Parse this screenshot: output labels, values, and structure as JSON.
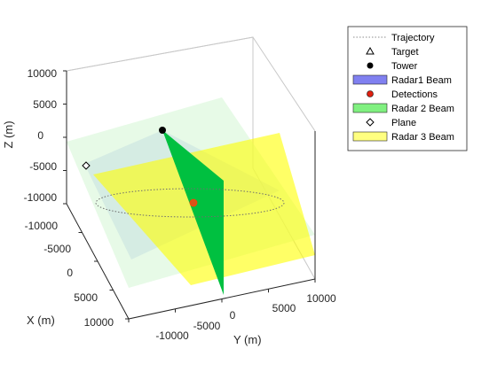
{
  "chart_data": {
    "type": "scatter",
    "projection": "3d",
    "title": "",
    "xlabel": "X (m)",
    "ylabel": "Y (m)",
    "zlabel": "Z (m)",
    "xticks": [
      "-10000",
      "-5000",
      "0",
      "5000",
      "10000"
    ],
    "yticks": [
      "-10000",
      "-5000",
      "0",
      "5000",
      "10000"
    ],
    "zticks": [
      "10000",
      "5000",
      "0",
      "-5000",
      "-10000"
    ],
    "xlim": [
      -10000,
      10000
    ],
    "ylim": [
      -10000,
      10000
    ],
    "zlim": [
      -10000,
      10000
    ],
    "grid": false,
    "legend_position": "outside-top-right",
    "legend": [
      {
        "label": "Trajectory",
        "key": "trajectory"
      },
      {
        "label": "Target",
        "key": "target"
      },
      {
        "label": "Tower",
        "key": "tower"
      },
      {
        "label": "Radar1 Beam",
        "key": "radar1"
      },
      {
        "label": "Detections",
        "key": "detections"
      },
      {
        "label": "Radar 2 Beam",
        "key": "radar2"
      },
      {
        "label": "Plane",
        "key": "plane"
      },
      {
        "label": "Radar 3 Beam",
        "key": "radar3"
      }
    ],
    "series": [
      {
        "name": "Tower",
        "marker": "filled-circle",
        "color": "#000000",
        "points": [
          {
            "x": 0,
            "y": 0,
            "z": 0
          }
        ]
      },
      {
        "name": "Plane",
        "marker": "diamond",
        "color": "#000000",
        "points": [
          {
            "x": 10000,
            "y": -9000,
            "z": -5000
          }
        ]
      },
      {
        "name": "Detections",
        "marker": "filled-circle",
        "color": "#d95319",
        "points": [
          {
            "x": 0,
            "y": 0,
            "z": -10000
          }
        ]
      },
      {
        "name": "Trajectory",
        "line": "dotted",
        "color": "#8c8c8c",
        "shape": "ellipse",
        "center": [
          0,
          0,
          -10000
        ],
        "radius": 10000
      }
    ],
    "colors": {
      "radar1": "#8080f0",
      "radar2": "#00c040",
      "radar3": "#ffff00",
      "detections": "#d95319",
      "trajectory": "#8c8c8c"
    }
  }
}
